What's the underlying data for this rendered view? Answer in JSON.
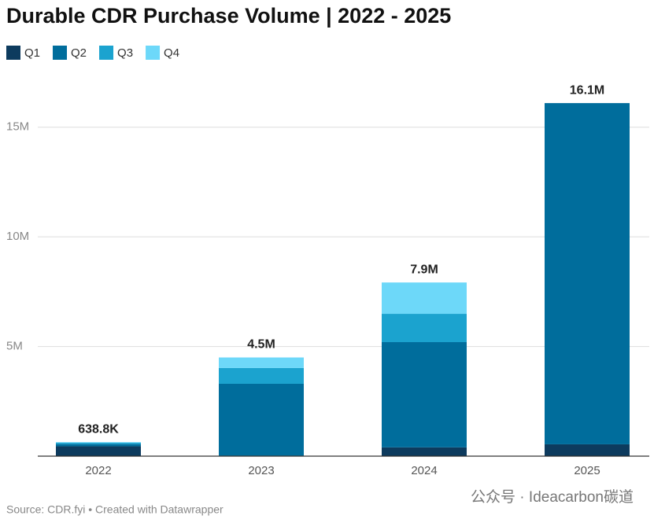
{
  "chart_data": {
    "type": "stacked_bar",
    "title": "Durable CDR Purchase Volume | 2022 - 2025",
    "categories": [
      "2022",
      "2023",
      "2024",
      "2025"
    ],
    "series": [
      {
        "name": "Q1",
        "color": "#0d3b5e",
        "values": [
          450000,
          20000,
          400000,
          540000
        ]
      },
      {
        "name": "Q2",
        "color": "#006d9c",
        "values": [
          100000,
          3280000,
          4800000,
          15560000
        ]
      },
      {
        "name": "Q3",
        "color": "#1ba3cf",
        "values": [
          60000,
          720000,
          1290000,
          null
        ]
      },
      {
        "name": "Q4",
        "color": "#6dd8f9",
        "values": [
          28800,
          480000,
          1430000,
          null
        ]
      }
    ],
    "totals": [
      638800,
      4500000,
      7920000,
      16100000
    ],
    "total_labels": [
      "638.8K",
      "4.5M",
      "7.9M",
      "16.1M"
    ],
    "ylim": [
      0,
      17000000
    ],
    "yticks": [
      {
        "value": 5000000,
        "label": "5M"
      },
      {
        "value": 10000000,
        "label": "10M"
      },
      {
        "value": 15000000,
        "label": "15M"
      }
    ],
    "grid": true,
    "source": "Source: CDR.fyi • Created with Datawrapper",
    "watermark": "公众号 · Ideacarbon碳道"
  }
}
